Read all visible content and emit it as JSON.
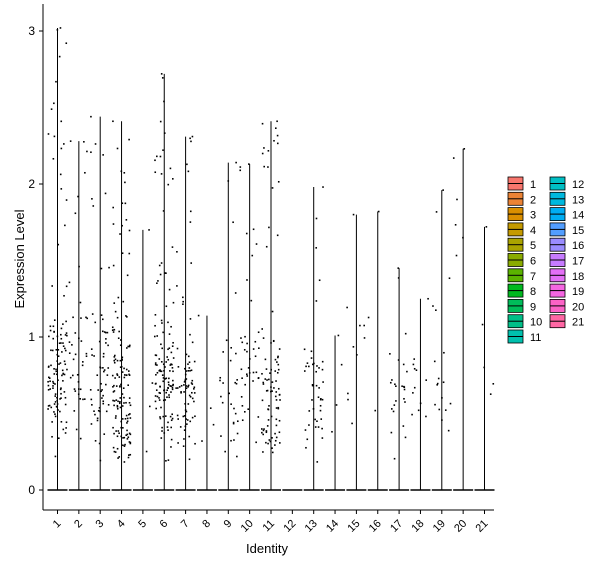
{
  "chart_data": {
    "type": "violin",
    "title": "",
    "xlabel": "Identity",
    "ylabel": "Expression Level",
    "ylim": [
      0,
      3.1
    ],
    "y_ticks": [
      0,
      1,
      2,
      3
    ],
    "categories": [
      "1",
      "2",
      "3",
      "4",
      "5",
      "6",
      "7",
      "8",
      "9",
      "10",
      "11",
      "12",
      "13",
      "14",
      "15",
      "16",
      "17",
      "18",
      "19",
      "20",
      "21"
    ],
    "series": [
      {
        "cluster": "1",
        "max": 3.02,
        "color": "#F8766D",
        "n_pos": 120,
        "center": 0.75
      },
      {
        "cluster": "2",
        "max": 2.28,
        "color": "#E88526",
        "n_pos": 40,
        "center": 0.9
      },
      {
        "cluster": "3",
        "max": 2.44,
        "color": "#D39200",
        "n_pos": 60,
        "center": 0.7
      },
      {
        "cluster": "4",
        "max": 2.41,
        "color": "#B79F00",
        "n_pos": 140,
        "center": 0.55
      },
      {
        "cluster": "5",
        "max": 1.7,
        "color": "#93AA00",
        "n_pos": 4,
        "center": 0.6
      },
      {
        "cluster": "6",
        "max": 2.72,
        "color": "#5EB300",
        "n_pos": 130,
        "center": 0.75
      },
      {
        "cluster": "7",
        "max": 2.31,
        "color": "#00BA38",
        "n_pos": 80,
        "center": 0.6
      },
      {
        "cluster": "8",
        "max": 1.14,
        "color": "#00BF74",
        "n_pos": 4,
        "center": 0.5
      },
      {
        "cluster": "9",
        "max": 2.14,
        "color": "#00C19F",
        "n_pos": 30,
        "center": 0.6
      },
      {
        "cluster": "10",
        "max": 2.13,
        "color": "#00BFC4",
        "n_pos": 40,
        "center": 0.75
      },
      {
        "cluster": "11",
        "max": 2.41,
        "color": "#00B9E3",
        "n_pos": 90,
        "center": 0.6
      },
      {
        "cluster": "12",
        "max": 0.0,
        "color": "#00ADFA",
        "n_pos": 0,
        "center": 0
      },
      {
        "cluster": "13",
        "max": 1.98,
        "color": "#619CFF",
        "n_pos": 45,
        "center": 0.6
      },
      {
        "cluster": "14",
        "max": 1.01,
        "color": "#AE87FF",
        "n_pos": 4,
        "center": 0.5
      },
      {
        "cluster": "15",
        "max": 1.8,
        "color": "#DB72FB",
        "n_pos": 10,
        "center": 0.8
      },
      {
        "cluster": "16",
        "max": 1.82,
        "color": "#F564E3",
        "n_pos": 3,
        "center": 0.7
      },
      {
        "cluster": "17",
        "max": 1.45,
        "color": "#FF61C3",
        "n_pos": 25,
        "center": 0.6
      },
      {
        "cluster": "18",
        "max": 1.25,
        "color": "#FF69A3",
        "n_pos": 12,
        "center": 0.55
      },
      {
        "cluster": "19",
        "max": 1.96,
        "color": "#FF7F7F",
        "n_pos": 18,
        "center": 0.6
      },
      {
        "cluster": "20",
        "max": 2.23,
        "color": "#F8766D",
        "n_pos": 6,
        "center": 1.8
      },
      {
        "cluster": "21",
        "max": 1.72,
        "color": "#FF6C91",
        "n_pos": 5,
        "center": 0.9
      }
    ],
    "legend": {
      "position": "right",
      "entries": [
        {
          "label": "1",
          "color": "#F8766D"
        },
        {
          "label": "2",
          "color": "#EB8335"
        },
        {
          "label": "3",
          "color": "#DA8F00"
        },
        {
          "label": "4",
          "color": "#C49A00"
        },
        {
          "label": "5",
          "color": "#AAA300"
        },
        {
          "label": "6",
          "color": "#8AAB00"
        },
        {
          "label": "7",
          "color": "#5BB300"
        },
        {
          "label": "8",
          "color": "#00B81F"
        },
        {
          "label": "9",
          "color": "#00BC5A"
        },
        {
          "label": "10",
          "color": "#00BF88"
        },
        {
          "label": "11",
          "color": "#00C0AE"
        },
        {
          "label": "12",
          "color": "#00BFC4"
        },
        {
          "label": "13",
          "color": "#00B8DE"
        },
        {
          "label": "14",
          "color": "#00ADF3"
        },
        {
          "label": "15",
          "color": "#529EFF"
        },
        {
          "label": "16",
          "color": "#9A8CFF"
        },
        {
          "label": "17",
          "color": "#C77CFF"
        },
        {
          "label": "18",
          "color": "#E46FF6"
        },
        {
          "label": "19",
          "color": "#F566E2"
        },
        {
          "label": "20",
          "color": "#FC62C6"
        },
        {
          "label": "21",
          "color": "#FF67A4"
        }
      ]
    },
    "grid": false
  }
}
